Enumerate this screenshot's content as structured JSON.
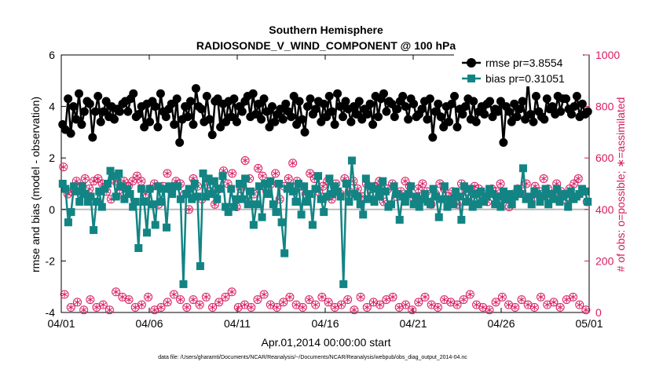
{
  "chart_data": {
    "type": "line",
    "title_line1": "Southern Hemisphere",
    "title_line2": "RADIOSONDE_V_WIND_COMPONENT @ 100 hPa",
    "xlabel": "Apr.01,2014 00:00:00 start",
    "ylabel": "rmse and bias (model - observation)",
    "ylabel_right": "# of obs: o=possible; ∗=assimilated",
    "footnote": "data file: /Users/gharamti/Documents/NCAR/Reanalysis/~/Documents/NCAR/Reanalysis/webpub/obs_diag_output_2014-04.nc",
    "xlim": [
      0,
      30
    ],
    "ylim": [
      -4,
      6
    ],
    "ylim_right": [
      0,
      1000
    ],
    "x_ticks": [
      0,
      5,
      10,
      15,
      20,
      25,
      30
    ],
    "x_tick_labels": [
      "04/01",
      "04/06",
      "04/11",
      "04/16",
      "04/21",
      "04/26",
      "05/01"
    ],
    "y_ticks": [
      -4,
      -2,
      0,
      2,
      4,
      6
    ],
    "y_tick_labels": [
      "-4",
      "-2",
      "0",
      "2",
      "4",
      "6"
    ],
    "y_ticks_right": [
      0,
      200,
      400,
      600,
      800,
      1000
    ],
    "y_tick_labels_right": [
      "0",
      "200",
      "400",
      "600",
      "800",
      "1000"
    ],
    "zero_line": true,
    "grid": false,
    "legend_placement": "top-right",
    "colors": {
      "rmse": "#000000",
      "bias": "#138484",
      "counts": "#d81b60",
      "zero_line": "#bbbbbb"
    },
    "series": [
      {
        "name": "rmse pr=3.8554",
        "marker": "circle",
        "values": [
          3.3,
          3.1,
          4.3,
          2.95,
          4.0,
          3.5,
          4.5,
          3.3,
          3.8,
          4.2,
          4.1,
          2.8,
          3.8,
          4.4,
          3.4,
          3.8,
          4.2,
          3.6,
          4.0,
          3.5,
          3.9,
          3.8,
          4.1,
          4.2,
          3.8,
          4.3,
          4.5,
          3.6,
          3.7,
          4.0,
          3.2,
          4.1,
          3.4,
          4.2,
          4.0,
          3.2,
          4.5,
          3.8,
          3.6,
          3.9,
          4.1,
          3.3,
          4.3,
          2.6,
          3.5,
          4.0,
          3.6,
          4.2,
          3.3,
          4.7,
          4.0,
          3.9,
          3.4,
          4.4,
          3.5,
          2.9,
          4.2,
          4.3,
          3.2,
          4.1,
          3.4,
          4.2,
          3.6,
          4.3,
          3.4,
          4.0,
          3.8,
          4.2,
          4.4,
          3.6,
          4.5,
          3.7,
          4.1,
          3.5,
          4.3,
          3.8,
          3.2,
          4.0,
          3.4,
          3.7,
          3.9,
          3.5,
          4.1,
          3.8,
          3.6,
          4.4,
          3.3,
          4.2,
          3.5,
          3.0,
          4.0,
          4.3,
          3.7,
          3.9,
          4.2,
          3.4,
          4.1,
          3.6,
          4.4,
          3.8,
          3.3,
          4.5,
          4.0,
          3.6,
          4.2,
          3.9,
          3.4,
          4.0,
          3.7,
          4.2,
          3.5,
          3.9,
          3.7,
          4.1,
          3.3,
          4.4,
          3.6,
          4.3,
          4.5,
          3.8,
          4.2,
          4.1,
          3.6,
          3.9,
          4.2,
          4.4,
          4.0,
          3.5,
          4.3,
          4.1,
          3.6,
          3.7,
          3.9,
          4.2,
          3.5,
          4.3,
          2.8,
          3.8,
          4.1,
          3.6,
          3.2,
          4.0,
          3.4,
          4.1,
          4.4,
          3.2,
          3.9,
          3.7,
          4.0,
          4.3,
          3.5,
          4.2,
          3.4,
          3.8,
          4.0,
          3.7,
          4.1,
          4.2,
          3.6,
          3.9,
          3.8,
          4.2,
          2.6,
          4.0,
          3.8,
          3.4,
          4.1,
          3.6,
          3.9,
          4.2,
          3.5,
          5.0,
          3.7,
          3.4,
          4.4,
          3.8,
          3.6,
          3.5,
          4.3,
          3.9,
          4.0,
          3.7,
          4.4,
          3.8,
          4.3,
          4.3,
          3.9,
          3.7,
          4.0,
          4.4,
          3.6,
          4.1,
          3.7,
          3.8
        ],
        "values_note": ""
      },
      {
        "name": "bias pr=0.31051",
        "marker": "square",
        "values": [
          1.0,
          0.8,
          -0.5,
          -0.1,
          0.9,
          0.7,
          0.3,
          0.9,
          0.6,
          0.3,
          0.5,
          -0.8,
          0.3,
          0.7,
          0.1,
          0.8,
          1.0,
          1.5,
          1.3,
          0.5,
          1.4,
          0.9,
          0.4,
          0.8,
          0.6,
          0.1,
          0.3,
          -1.5,
          0.8,
          0.3,
          -0.9,
          0.8,
          0.2,
          -0.6,
          0.9,
          0.3,
          0.8,
          -0.7,
          0.9,
          0.6,
          0.9,
          0.9,
          0.4,
          -2.9,
          0.6,
          0.8,
          0.4,
          1.0,
          0.5,
          -2.2,
          1.4,
          0.5,
          1.2,
          0.6,
          1.1,
          0.4,
          0.8,
          1.3,
          0.1,
          -0.1,
          0.8,
          0.1,
          0.4,
          1.0,
          0.4,
          1.2,
          0.2,
          0.7,
          -0.6,
          0.2,
          0.9,
          -0.3,
          1.0,
          0.6,
          1.1,
          0.2,
          -0.1,
          1.0,
          -0.5,
          -1.7,
          0.8,
          0.9,
          0.7,
          0.3,
          1.0,
          -0.2,
          0.9,
          0.3,
          0.6,
          -0.6,
          0.8,
          1.3,
          0.4,
          -0.1,
          0.5,
          1.2,
          0.6,
          0.9,
          0.7,
          0.5,
          -2.9,
          1.0,
          0.3,
          1.9,
          0.6,
          0.5,
          0.2,
          -0.2,
          1.2,
          0.4,
          0.9,
          0.3,
          0.8,
          0.5,
          1.1,
          0.7,
          0.1,
          0.2,
          0.9,
          0.6,
          -0.4,
          0.5,
          0.3,
          0.6,
          0.9,
          0.2,
          0.5,
          0.1,
          0.4,
          0.6,
          0.3,
          0.2,
          0.8,
          0.5,
          -0.3,
          0.4,
          0.9,
          0.1,
          0.4,
          0.2,
          0.7,
          0.5,
          -0.4,
          0.9,
          0.3,
          0.8,
          0.1,
          0.6,
          0.2,
          0.7,
          0.3,
          0.5,
          0.8,
          0.6,
          0.2,
          0.5,
          0.1,
          0.7,
          0.4,
          0.6,
          0.2,
          0.5,
          0.8,
          0.6,
          1.6,
          0.4,
          0.5,
          0.2,
          0.7,
          0.6,
          0.3,
          0.5,
          0.8,
          0.2,
          0.6,
          0.4,
          0.8,
          0.3,
          0.5,
          0.6,
          0.1,
          0.7,
          0.4,
          0.5,
          0.6,
          0.8,
          0.7,
          0.3
        ],
        "values_note": ""
      }
    ],
    "obs_possible_upper": [
      565,
      460,
      470,
      510,
      490,
      520,
      480,
      510,
      520,
      500,
      470,
      440,
      510,
      460,
      510,
      490,
      510,
      530,
      510,
      460,
      480,
      500,
      420,
      490,
      540,
      470,
      510,
      500,
      460,
      400,
      520,
      490,
      440,
      510,
      470,
      420,
      480,
      550,
      500,
      540,
      410,
      480,
      590,
      520,
      460,
      560,
      530,
      470,
      500,
      540,
      440,
      490,
      520,
      580,
      510,
      490,
      460,
      540,
      520,
      470,
      490,
      510,
      440,
      500,
      460,
      520,
      470,
      510,
      480,
      450,
      500,
      480,
      490,
      510,
      430,
      480,
      500,
      450,
      470,
      510,
      490,
      440,
      480,
      500,
      470,
      420,
      460,
      500,
      480,
      450,
      470,
      420,
      500,
      470,
      440,
      490,
      480,
      460,
      430,
      480,
      470,
      500,
      440,
      410,
      460,
      480,
      470,
      500,
      440,
      490,
      470,
      520,
      480,
      460,
      500,
      470,
      440,
      480,
      500,
      520,
      470,
      430
    ],
    "obs_possible_lower": [
      70,
      20,
      40,
      10,
      50,
      20,
      30,
      10,
      80,
      60,
      50,
      20,
      30,
      60,
      10,
      20,
      40,
      70,
      50,
      20,
      50,
      30,
      60,
      20,
      40,
      60,
      80,
      20,
      30,
      20,
      50,
      70,
      30,
      20,
      40,
      60,
      30,
      20,
      50,
      30,
      60,
      40,
      20,
      30,
      50,
      10,
      60,
      20,
      40,
      30,
      50,
      60,
      20,
      30,
      10,
      40,
      60,
      30,
      20,
      50,
      40,
      30,
      50,
      70,
      30,
      20,
      10,
      40,
      60,
      30,
      20,
      50,
      30,
      20,
      60,
      30,
      40,
      20,
      50,
      60,
      30,
      10
    ],
    "obs_assimilated_upper": [
      560,
      460,
      470,
      510,
      490,
      520,
      480,
      510,
      520,
      500,
      470,
      440,
      510,
      460,
      510,
      490,
      510,
      530,
      510,
      460,
      480,
      500,
      420,
      490,
      540,
      470,
      510,
      500,
      460,
      400,
      520,
      490,
      440,
      510,
      470,
      420,
      480,
      550,
      500,
      540,
      410,
      480,
      590,
      520,
      460,
      560,
      530,
      470,
      500,
      540,
      440,
      490,
      520,
      580,
      510,
      490,
      460,
      540,
      520,
      470,
      490,
      510,
      440,
      500,
      460,
      520,
      470,
      510,
      480,
      450,
      500,
      480,
      490,
      510,
      430,
      480,
      500,
      450,
      470,
      510,
      490,
      440,
      480,
      500,
      470,
      420,
      460,
      500,
      480,
      450,
      470,
      420,
      500,
      470,
      440,
      490,
      480,
      460,
      430,
      480,
      470,
      500,
      440,
      410,
      460,
      480,
      470,
      500,
      440,
      490,
      470,
      520,
      480,
      460,
      500,
      470,
      440,
      480,
      500,
      520,
      470,
      430
    ],
    "obs_assimilated_lower": [
      70,
      20,
      40,
      10,
      50,
      20,
      30,
      10,
      80,
      60,
      50,
      20,
      30,
      60,
      10,
      20,
      40,
      70,
      50,
      20,
      50,
      30,
      60,
      20,
      40,
      60,
      80,
      20,
      30,
      20,
      50,
      70,
      30,
      20,
      40,
      60,
      30,
      20,
      50,
      30,
      60,
      40,
      20,
      30,
      50,
      10,
      60,
      20,
      40,
      30,
      50,
      60,
      20,
      30,
      10,
      40,
      60,
      30,
      20,
      50,
      40,
      30,
      50,
      70,
      30,
      20,
      10,
      40,
      60,
      30,
      20,
      50,
      30,
      20,
      60,
      30,
      40,
      20,
      50,
      60,
      30,
      10
    ]
  }
}
